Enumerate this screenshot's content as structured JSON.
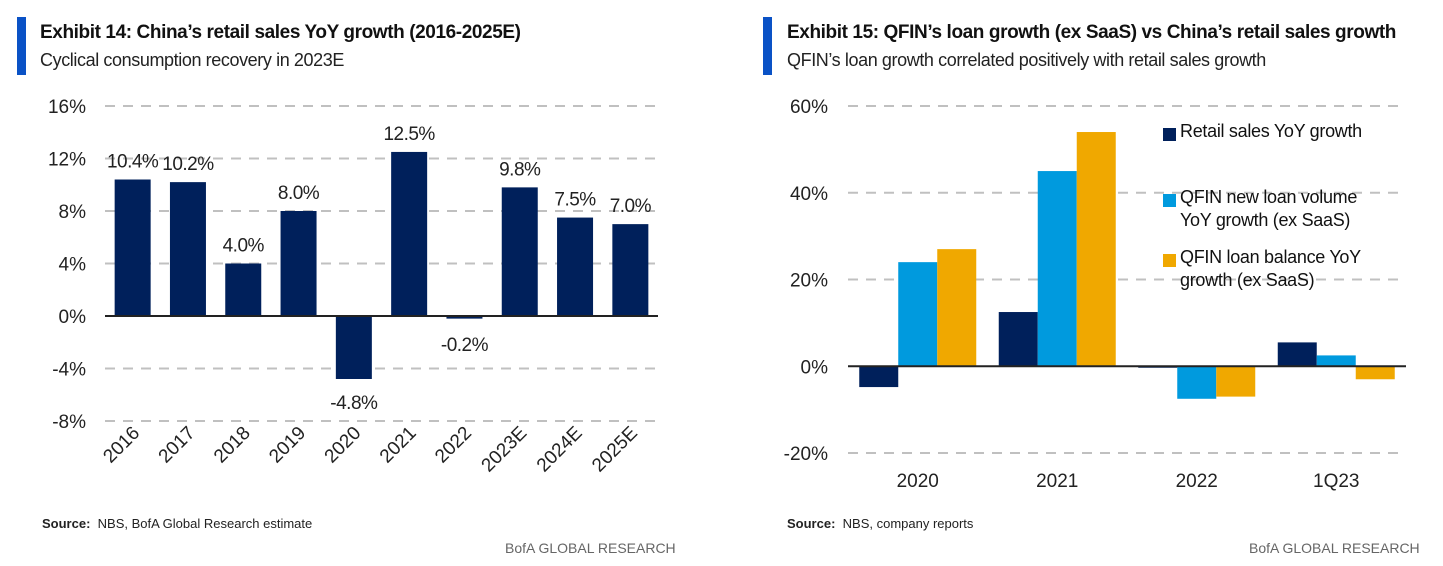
{
  "colors": {
    "accent": "#0a52c6",
    "navy": "#00205b",
    "sky": "#009ade",
    "gold": "#f0a800",
    "grid": "#c0c0c0",
    "axis": "#222222"
  },
  "left": {
    "title": "Exhibit 14: China’s retail sales YoY growth (2016-2025E)",
    "subtitle": "Cyclical consumption recovery in 2023E",
    "source_label": "Source:",
    "source_text": "NBS, BofA Global Research estimate",
    "brand": "BofA GLOBAL RESEARCH"
  },
  "right": {
    "title": "Exhibit 15: QFIN’s loan growth (ex SaaS) vs China’s retail sales growth",
    "subtitle": "QFIN’s loan growth correlated positively with retail sales growth",
    "source_label": "Source:",
    "source_text": "NBS, company reports",
    "brand": "BofA GLOBAL RESEARCH",
    "legend": [
      {
        "label_lines": [
          "Retail sales YoY growth"
        ],
        "color_key": "navy"
      },
      {
        "label_lines": [
          "QFIN new loan volume",
          "YoY growth (ex SaaS)"
        ],
        "color_key": "sky"
      },
      {
        "label_lines": [
          "QFIN loan balance YoY",
          "growth (ex SaaS)"
        ],
        "color_key": "gold"
      }
    ]
  },
  "chart_data": [
    {
      "type": "bar",
      "title": "Exhibit 14: China’s retail sales YoY growth (2016-2025E)",
      "subtitle": "Cyclical consumption recovery in 2023E",
      "xlabel": "",
      "ylabel": "",
      "categories": [
        "2016",
        "2017",
        "2018",
        "2019",
        "2020",
        "2021",
        "2022",
        "2023E",
        "2024E",
        "2025E"
      ],
      "values": [
        10.4,
        10.2,
        4.0,
        8.0,
        -4.8,
        12.5,
        -0.2,
        9.8,
        7.5,
        7.0
      ],
      "data_labels": [
        "10.4%",
        "10.2%",
        "4.0%",
        "8.0%",
        "-4.8%",
        "12.5%",
        "-0.2%",
        "9.8%",
        "7.5%",
        "7.0%"
      ],
      "ylim": [
        -8,
        16
      ],
      "yticks": [
        16,
        12,
        8,
        4,
        0,
        -4,
        -8
      ],
      "ytick_labels": [
        "16%",
        "12%",
        "8%",
        "4%",
        "0%",
        "-4%",
        "-8%"
      ],
      "grid": true,
      "legend": "none",
      "series_color": "#00205b"
    },
    {
      "type": "bar",
      "title": "Exhibit 15: QFIN’s loan growth (ex SaaS) vs China’s retail sales growth",
      "subtitle": "QFIN’s loan growth correlated positively with retail sales growth",
      "xlabel": "",
      "ylabel": "",
      "categories": [
        "2020",
        "2021",
        "2022",
        "1Q23"
      ],
      "series": [
        {
          "name": "Retail sales YoY growth",
          "color": "#00205b",
          "values": [
            -4.8,
            12.5,
            -0.2,
            5.5
          ]
        },
        {
          "name": "QFIN new loan volume YoY growth (ex SaaS)",
          "color": "#009ade",
          "values": [
            24.0,
            45.0,
            -7.5,
            2.5
          ]
        },
        {
          "name": "QFIN loan balance YoY growth (ex SaaS)",
          "color": "#f0a800",
          "values": [
            27.0,
            54.0,
            -7.0,
            -3.0
          ]
        }
      ],
      "ylim": [
        -20,
        60
      ],
      "yticks": [
        60,
        40,
        20,
        0,
        -20
      ],
      "ytick_labels": [
        "60%",
        "40%",
        "20%",
        "0%",
        "-20%"
      ],
      "grid": true,
      "legend": "right"
    }
  ]
}
